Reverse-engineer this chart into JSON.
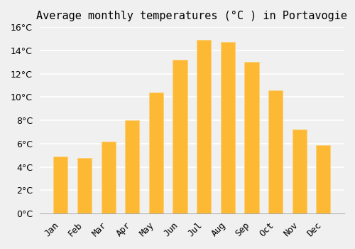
{
  "title": "Average monthly temperatures (°C ) in Portavogie",
  "months": [
    "Jan",
    "Feb",
    "Mar",
    "Apr",
    "May",
    "Jun",
    "Jul",
    "Aug",
    "Sep",
    "Oct",
    "Nov",
    "Dec"
  ],
  "values": [
    4.9,
    4.8,
    6.2,
    8.0,
    10.4,
    13.2,
    14.9,
    14.7,
    13.0,
    10.6,
    7.2,
    5.9
  ],
  "bar_color_top": "#FDB933",
  "bar_color_bottom": "#FDD078",
  "background_color": "#F0F0F0",
  "grid_color": "#FFFFFF",
  "ylim": [
    0,
    16
  ],
  "ytick_step": 2,
  "title_fontsize": 11,
  "tick_fontsize": 9
}
